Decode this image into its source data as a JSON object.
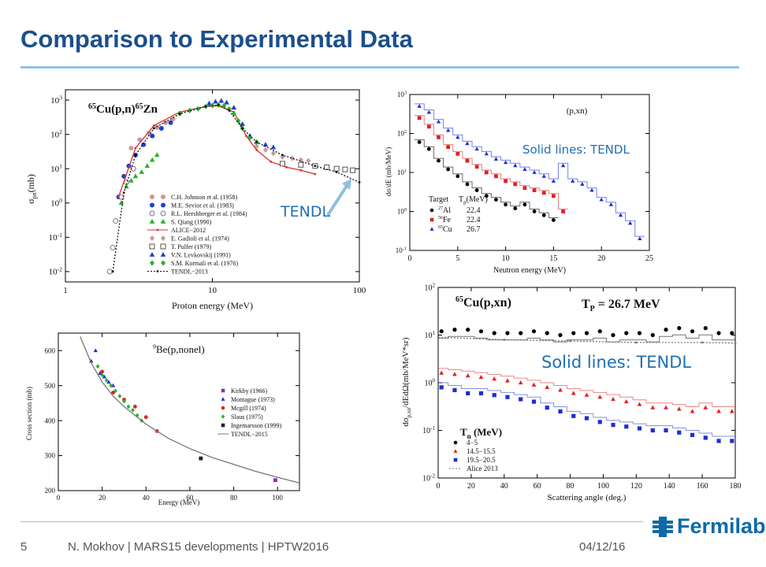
{
  "slide": {
    "title": "Comparison to Experimental Data",
    "tendl_callout": "TENDL",
    "solid_lines_small": "Solid lines: TENDL",
    "solid_lines_large": "Solid lines: TENDL",
    "footer_page": "5",
    "footer_text": "N. Mokhov | MARS15 developments | HPTW2016",
    "footer_date": "04/12/16",
    "logo_text": "Fermilab",
    "colors": {
      "title": "#1b4f8c",
      "accent_line": "#8fc2e8",
      "callout": "#1f6fb5",
      "logo": "#0f6aa8"
    }
  },
  "chart_data": [
    {
      "type": "scatter",
      "title_parts": [
        "65",
        "Cu(p,n)",
        "65",
        "Zn"
      ],
      "xlabel": "Proton energy (MeV)",
      "ylabel": "σ",
      "ylabel_sub": "pn",
      "ylabel_unit": "(mb)",
      "xscale": "log",
      "yscale": "log",
      "xlim": [
        1,
        100
      ],
      "ylim": [
        0.005,
        2000
      ],
      "xticks": [
        1,
        10,
        100
      ],
      "xticklabels": [
        "1",
        "10",
        "100"
      ],
      "yticks": [
        0.01,
        0.1,
        1,
        10,
        100,
        1000
      ],
      "yticklabels": [
        [
          "10",
          "-2"
        ],
        [
          "10",
          "-1"
        ],
        [
          "10",
          "0"
        ],
        [
          "10",
          "1"
        ],
        [
          "10",
          "2"
        ],
        [
          "10",
          "3"
        ]
      ],
      "series": [
        {
          "name": "C.H. Johnson et al. (1958)",
          "color": "#cc9a9a",
          "marker": "circle",
          "x": [
            2.8,
            3.2,
            3.7,
            4.2,
            4.8,
            5.4
          ],
          "y": [
            40,
            70,
            110,
            160,
            220,
            280
          ]
        },
        {
          "name": "M.E. Sevior et al. (1983)",
          "color": "#1f3fd0",
          "marker": "circle",
          "x": [
            2.2,
            2.3,
            2.5,
            2.7,
            3.0,
            3.4,
            3.9,
            4.5,
            5.2
          ],
          "y": [
            0.3,
            1.5,
            6,
            12,
            25,
            50,
            90,
            150,
            220
          ]
        },
        {
          "name": "R.L. Hershberger et al. (1984)",
          "color": "#777777",
          "marker": "circle-open",
          "x": [
            2.0,
            2.1,
            2.2,
            2.4,
            2.6,
            2.9
          ],
          "y": [
            0.01,
            0.05,
            0.3,
            1.5,
            4,
            10
          ]
        },
        {
          "name": "S. Qiang (1990)",
          "color": "#2ab22a",
          "marker": "triangle",
          "x": [
            2.4,
            2.6,
            2.8,
            3.0,
            3.3,
            3.6,
            3.9,
            4.2
          ],
          "y": [
            1,
            3,
            4.5,
            6,
            8,
            12,
            18,
            25
          ]
        },
        {
          "name": "ALICE−2012",
          "color": "#d83030",
          "marker": "line-dot",
          "x": [
            2.3,
            3.0,
            4.0,
            6.0,
            9.0,
            11.0,
            14.0,
            17.0,
            20.0,
            25.0,
            32.0,
            40.0,
            50.0
          ],
          "y": [
            1.5,
            40,
            180,
            450,
            650,
            680,
            450,
            90,
            35,
            16,
            11,
            9,
            7
          ]
        },
        {
          "name": "E. Gadioli et al. (1974)",
          "color": "#c49a9a",
          "marker": "diamond",
          "x": [
            20,
            23,
            26,
            30,
            35,
            40,
            45
          ],
          "y": [
            45,
            35,
            28,
            22,
            20,
            18,
            17
          ]
        },
        {
          "name": "T. Pulfer (1979)",
          "color": "#555555",
          "marker": "square-open",
          "x": [
            30,
            40,
            50,
            60,
            70,
            80,
            90
          ],
          "y": [
            14,
            13,
            12,
            11,
            10,
            9.5,
            9
          ]
        },
        {
          "name": "V.N. Levkovskij (1991)",
          "color": "#1f3fd0",
          "marker": "triangle",
          "x": [
            9.5,
            10.5,
            11.5,
            12.5,
            14,
            16,
            18,
            20,
            23,
            26
          ],
          "y": [
            800,
            900,
            950,
            850,
            600,
            200,
            90,
            60,
            50,
            42
          ]
        },
        {
          "name": "S.M. Kormali et al. (1976)",
          "color": "#2ab22a",
          "marker": "diamond",
          "x": [
            6,
            7,
            8,
            9,
            10,
            11,
            12,
            13,
            14,
            15,
            16,
            18,
            20
          ],
          "y": [
            400,
            500,
            560,
            650,
            700,
            720,
            680,
            550,
            400,
            250,
            150,
            80,
            60
          ]
        },
        {
          "name": "TENDL−2013",
          "color": "#111111",
          "marker": "dotted",
          "x": [
            2.1,
            2.5,
            3.0,
            4.0,
            6.0,
            9.0,
            11.0,
            13.0,
            16.0,
            20.0,
            30.0,
            50.0,
            70.0,
            100.0
          ],
          "y": [
            0.01,
            2,
            25,
            150,
            400,
            650,
            720,
            500,
            150,
            60,
            25,
            12,
            8,
            4
          ]
        }
      ],
      "legend_position": "lower-right"
    },
    {
      "type": "line",
      "title": "(p,xn)",
      "xlabel": "Neutron energy (MeV)",
      "ylabel": "dσ/dE (mb/MeV)",
      "yscale": "log",
      "xlim": [
        0,
        25
      ],
      "ylim": [
        0.1,
        1000
      ],
      "xticks": [
        0,
        5,
        10,
        15,
        20,
        25
      ],
      "yticks": [
        0.1,
        1,
        10,
        100,
        1000
      ],
      "yticklabels": [
        [
          "10",
          "-1"
        ],
        [
          "10",
          "0"
        ],
        [
          "10",
          "1"
        ],
        [
          "10",
          "2"
        ],
        [
          "10",
          "3"
        ]
      ],
      "legend_header": "Target",
      "legend_header_tp": "T",
      "legend_header_tp_sub": "p",
      "legend_header_unit": "(MeV)",
      "series": [
        {
          "name": "Al",
          "mass": "27",
          "energy": "22.4",
          "color": "#000000",
          "marker": "circle",
          "x": [
            1,
            2,
            3,
            4,
            5,
            6,
            7,
            8,
            9,
            10,
            11,
            12,
            13,
            14,
            15
          ],
          "y": [
            60,
            40,
            20,
            12,
            8,
            5,
            3.5,
            2.5,
            2,
            1.5,
            1.2,
            1.5,
            1,
            0.8,
            0.6
          ]
        },
        {
          "name": "Fe",
          "mass": "56",
          "energy": "22.4",
          "color": "#dd2222",
          "marker": "square",
          "x": [
            1,
            2,
            3,
            4,
            5,
            6,
            7,
            8,
            9,
            10,
            11,
            12,
            13,
            14,
            15,
            16
          ],
          "y": [
            250,
            150,
            80,
            45,
            30,
            20,
            14,
            10,
            8,
            6,
            5,
            4,
            3.5,
            3,
            2.5,
            1
          ]
        },
        {
          "name": "Cu",
          "mass": "65",
          "energy": "26.7",
          "color": "#1f2fd0",
          "marker": "triangle",
          "x": [
            1,
            2,
            3,
            4,
            5,
            6,
            7,
            8,
            9,
            10,
            11,
            12,
            13,
            14,
            15,
            16,
            17,
            18,
            19,
            20,
            21,
            22,
            23,
            24
          ],
          "y": [
            500,
            350,
            200,
            120,
            80,
            55,
            40,
            30,
            22,
            18,
            15,
            12,
            10,
            8,
            6,
            15,
            6,
            5,
            3.5,
            2,
            1.5,
            0.8,
            0.5,
            0.2
          ]
        }
      ]
    },
    {
      "type": "scatter",
      "title_parts": [
        "9",
        "Be(p,nonel)"
      ],
      "xlabel": "Energy (MeV)",
      "ylabel": "Cross section (mb)",
      "xlim": [
        0,
        110
      ],
      "ylim": [
        200,
        650
      ],
      "xticks": [
        0,
        20,
        40,
        60,
        80,
        100
      ],
      "yticks": [
        200,
        300,
        400,
        500,
        600
      ],
      "series": [
        {
          "name": "Kirkby (1966)",
          "color": "#8b2fb0",
          "marker": "square",
          "x": [
            99
          ],
          "y": [
            230
          ]
        },
        {
          "name": "Montague (1973)",
          "color": "#1f2fd0",
          "marker": "triangle",
          "x": [
            15,
            17,
            19,
            21,
            23,
            25
          ],
          "y": [
            570,
            600,
            535,
            525,
            510,
            500
          ]
        },
        {
          "name": "Mcgill (1974)",
          "color": "#dd2222",
          "marker": "circle",
          "x": [
            20,
            25,
            30,
            35,
            40,
            45
          ],
          "y": [
            540,
            480,
            460,
            440,
            410,
            370
          ]
        },
        {
          "name": "Slaus (1975)",
          "color": "#2ab22a",
          "marker": "diamond",
          "x": [
            18,
            20,
            22,
            24,
            26,
            28,
            30,
            32,
            34,
            36,
            38
          ],
          "y": [
            555,
            530,
            515,
            500,
            485,
            470,
            455,
            440,
            430,
            415,
            400
          ]
        },
        {
          "name": "Ingemarsson (1999)",
          "color": "#222222",
          "marker": "square",
          "x": [
            65
          ],
          "y": [
            292
          ]
        },
        {
          "name": "TENDL−2015",
          "color": "#777777",
          "marker": "line",
          "x": [
            10,
            15,
            20,
            25,
            30,
            40,
            50,
            60,
            70,
            80,
            90,
            100,
            110
          ],
          "y": [
            640,
            565,
            510,
            470,
            440,
            390,
            350,
            320,
            295,
            275,
            255,
            238,
            222
          ]
        }
      ],
      "legend_position": "right"
    },
    {
      "type": "scatter",
      "title_parts": [
        "65",
        "Cu(p,xn)"
      ],
      "energy_label": [
        "T",
        "P",
        " = 26.7 MeV"
      ],
      "xlabel": "Scattering angle (deg.)",
      "ylabel": "dσ",
      "ylabel_sub": "p,xn",
      "ylabel_rest": "/dEdΩ(mb/MeV*sr)",
      "yscale": "log",
      "xlim": [
        0,
        180
      ],
      "ylim": [
        0.01,
        100
      ],
      "xticks": [
        0,
        20,
        40,
        60,
        80,
        100,
        120,
        140,
        160,
        180
      ],
      "yticks": [
        0.01,
        0.1,
        1,
        10,
        100
      ],
      "yticklabels": [
        [
          "10",
          "-2"
        ],
        [
          "10",
          "-1"
        ],
        [
          "10",
          "0"
        ],
        [
          "10",
          "1"
        ],
        [
          "10",
          "2"
        ]
      ],
      "legend_header": "T",
      "legend_header_sub": "n",
      "legend_header_unit": " (MeV)",
      "series": [
        {
          "name": "4−5",
          "color": "#000000",
          "marker": "circle",
          "x": [
            2,
            10,
            18,
            26,
            34,
            42,
            50,
            58,
            66,
            74,
            82,
            90,
            98,
            106,
            114,
            122,
            130,
            138,
            146,
            154,
            162,
            170,
            178
          ],
          "y": [
            12,
            13,
            13,
            12,
            11,
            11,
            11,
            12,
            11,
            10,
            11,
            11,
            12,
            10,
            11,
            11,
            10,
            13,
            14,
            12,
            14,
            11,
            11
          ]
        },
        {
          "name": "14.5−15.5",
          "color": "#dd2222",
          "marker": "triangle",
          "x": [
            2,
            10,
            18,
            26,
            34,
            42,
            50,
            58,
            66,
            74,
            82,
            90,
            98,
            106,
            114,
            122,
            130,
            138,
            146,
            154,
            162,
            170,
            178
          ],
          "y": [
            1.6,
            1.5,
            1.4,
            1.3,
            1.2,
            1.1,
            1.0,
            0.9,
            0.8,
            0.7,
            0.6,
            0.55,
            0.5,
            0.45,
            0.4,
            0.35,
            0.3,
            0.3,
            0.28,
            0.25,
            0.3,
            0.25,
            0.25
          ]
        },
        {
          "name": "19.5−20.5",
          "color": "#1f2fd0",
          "marker": "square",
          "x": [
            2,
            10,
            18,
            26,
            34,
            42,
            50,
            58,
            66,
            74,
            82,
            90,
            98,
            106,
            114,
            122,
            130,
            138,
            146,
            154,
            162,
            170,
            178
          ],
          "y": [
            0.8,
            0.7,
            0.6,
            0.6,
            0.55,
            0.5,
            0.45,
            0.4,
            0.3,
            0.25,
            0.2,
            0.18,
            0.15,
            0.13,
            0.12,
            0.11,
            0.1,
            0.1,
            0.09,
            0.08,
            0.07,
            0.06,
            0.06
          ]
        },
        {
          "name": "Alice 2013",
          "color": "#777777",
          "marker": "dotted",
          "x": [
            0,
            40,
            80,
            120,
            160,
            180
          ],
          "y": [
            9,
            8,
            7.5,
            7,
            7,
            6.8
          ]
        }
      ]
    }
  ]
}
